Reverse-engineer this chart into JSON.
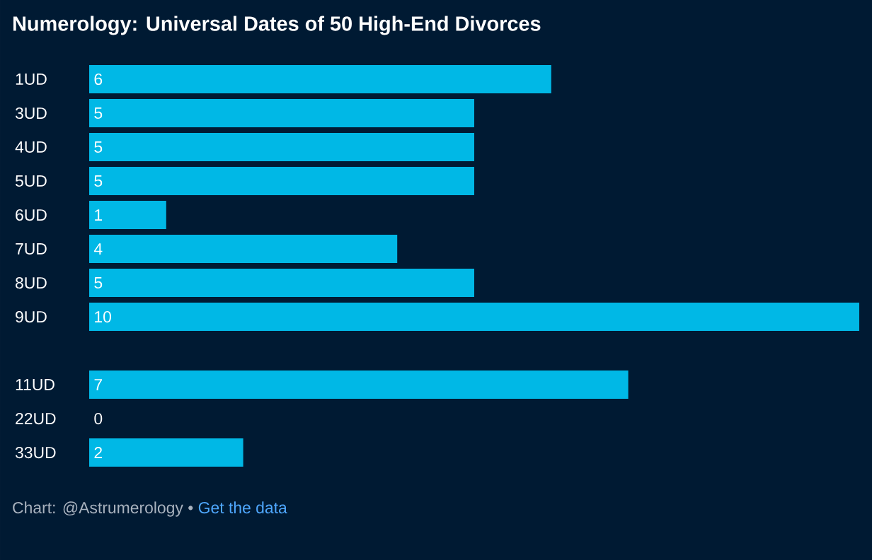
{
  "chart_data": {
    "type": "bar",
    "orientation": "horizontal",
    "title": "Numerology: Universal Dates of 50 High-End Divorces",
    "categories": [
      "1UD",
      "3UD",
      "4UD",
      "5UD",
      "6UD",
      "7UD",
      "8UD",
      "9UD",
      null,
      "11UD",
      "22UD",
      "33UD"
    ],
    "values": [
      6,
      5,
      5,
      5,
      1,
      4,
      5,
      10,
      null,
      7,
      0,
      2
    ],
    "color": "#00b8e6",
    "data_labels": true,
    "annotations": [
      "Chart: @Astrumerology •",
      "Get the data"
    ]
  }
}
